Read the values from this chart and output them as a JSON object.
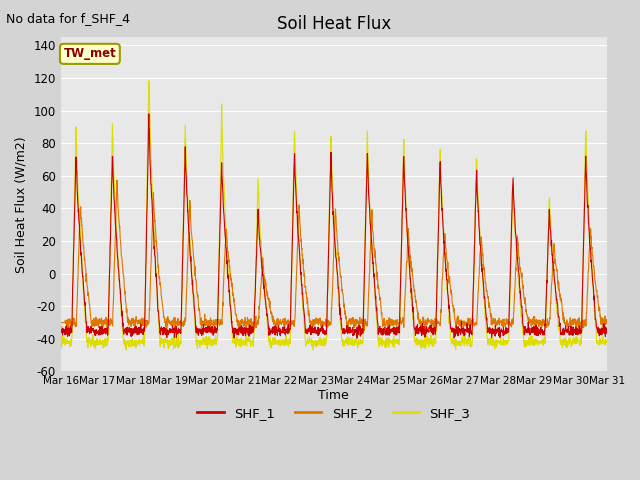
{
  "title": "Soil Heat Flux",
  "note": "No data for f_SHF_4",
  "ylabel": "Soil Heat Flux (W/m2)",
  "xlabel": "Time",
  "xlabels": [
    "Mar 16",
    "Mar 17",
    "Mar 18",
    "Mar 19",
    "Mar 20",
    "Mar 21",
    "Mar 22",
    "Mar 23",
    "Mar 24",
    "Mar 25",
    "Mar 26",
    "Mar 27",
    "Mar 28",
    "Mar 29",
    "Mar 30",
    "Mar 31"
  ],
  "ylim": [
    -60,
    145
  ],
  "yticks": [
    -60,
    -40,
    -20,
    0,
    20,
    40,
    60,
    80,
    100,
    120,
    140
  ],
  "legend_label": "TW_met",
  "series_colors": {
    "SHF_1": "#cc0000",
    "SHF_2": "#dd7700",
    "SHF_3": "#dddd00"
  },
  "series_labels": [
    "SHF_1",
    "SHF_2",
    "SHF_3"
  ],
  "plot_bg_color": "#e8e8e8",
  "fig_bg_color": "#d4d4d4",
  "title_fontsize": 12,
  "note_fontsize": 9,
  "n_days": 15,
  "points_per_day": 144,
  "day_amplitudes_shf1": [
    75,
    75,
    98,
    78,
    70,
    40,
    75,
    73,
    75,
    75,
    71,
    65,
    61,
    41,
    73
  ],
  "day_amplitudes_shf2": [
    45,
    59,
    50,
    46,
    30,
    9,
    42,
    41,
    40,
    28,
    27,
    25,
    23,
    20,
    30
  ],
  "day_amplitudes_shf3": [
    93,
    93,
    125,
    94,
    103,
    60,
    90,
    88,
    88,
    83,
    80,
    75,
    57,
    49,
    92
  ],
  "night_level_shf1": -35,
  "night_level_shf2": -30,
  "night_level_shf3": -42
}
